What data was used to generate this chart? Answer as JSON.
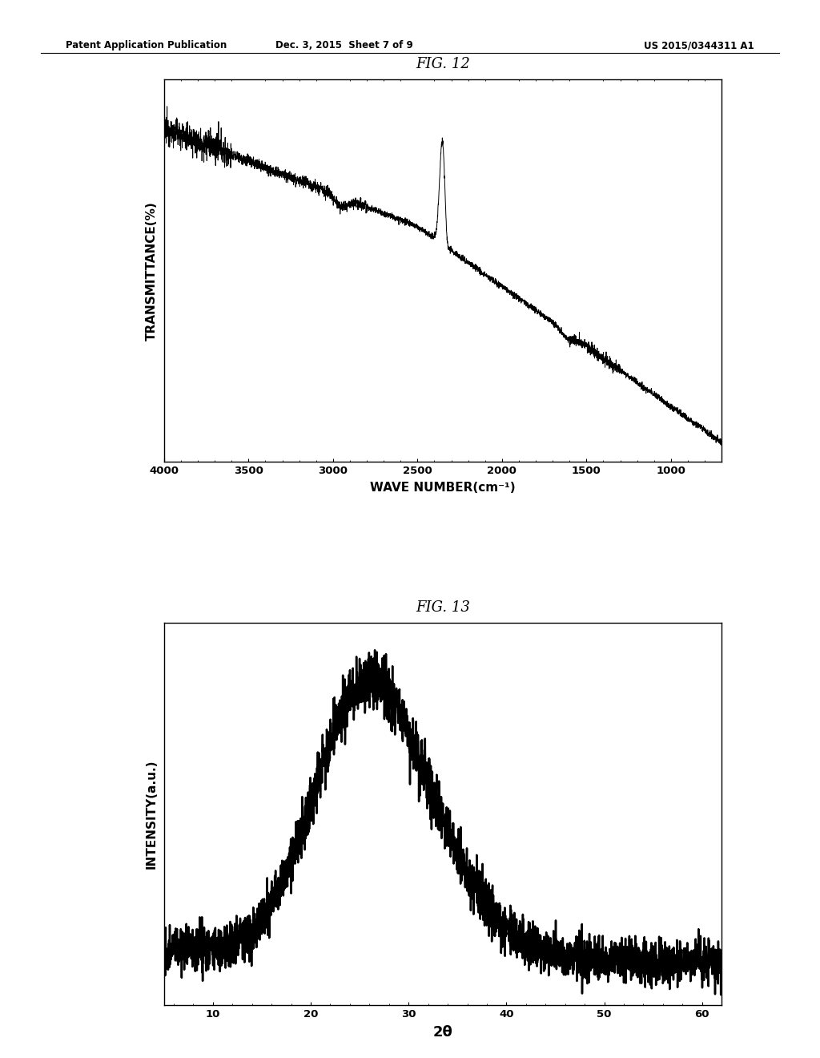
{
  "fig_width": 10.24,
  "fig_height": 13.2,
  "bg_color": "#ffffff",
  "header_left": "Patent Application Publication",
  "header_mid": "Dec. 3, 2015  Sheet 7 of 9",
  "header_right": "US 2015/0344311 A1",
  "fig12_title": "FIG. 12",
  "fig13_title": "FIG. 13",
  "fig12": {
    "xlabel": "WAVE NUMBER(cm⁻¹)",
    "ylabel": "TRANSMITTANCE(%)",
    "xlim": [
      4000,
      700
    ],
    "xticks": [
      4000,
      3500,
      3000,
      2500,
      2000,
      1500,
      1000
    ],
    "line_color": "#000000",
    "line_width": 0.7
  },
  "fig13": {
    "xlabel": "2θ",
    "ylabel": "INTENSITY(a.u.)",
    "xlim": [
      5,
      62
    ],
    "xticks": [
      10,
      20,
      30,
      40,
      50,
      60
    ],
    "line_color": "#000000",
    "line_width": 1.8
  }
}
